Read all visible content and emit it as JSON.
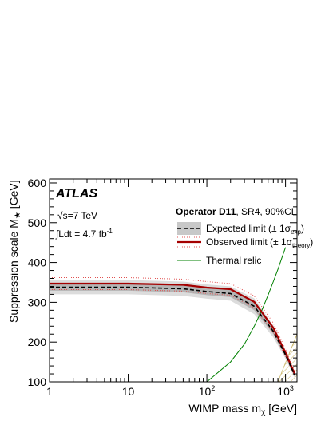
{
  "chart_data": {
    "type": "line",
    "xlabel": "WIMP mass m",
    "xlabel_sub": "χ",
    "xlabel_unit": " [GeV]",
    "ylabel": "Suppression scale M",
    "ylabel_sub": "★",
    "ylabel_unit": " [GeV]",
    "xscale": "log",
    "xlim": [
      1,
      1400
    ],
    "ylim": [
      100,
      610
    ],
    "x_ticks": [
      {
        "v": 1,
        "text": "1",
        "sup": ""
      },
      {
        "v": 10,
        "text": "10",
        "sup": ""
      },
      {
        "v": 100,
        "text": "10",
        "sup": "2"
      },
      {
        "v": 1000,
        "text": "10",
        "sup": "3"
      }
    ],
    "y_ticks": [
      100,
      200,
      300,
      400,
      500,
      600
    ],
    "legend_placement": "top-right",
    "texts": {
      "experiment": "ATLAS",
      "energy": "√s=7 TeV",
      "lumi_main": "∫Ldt = 4.7 fb",
      "lumi_sup": "-1",
      "operator_bold": "Operator D11",
      "operator_rest": ", SR4, 90%CL"
    },
    "legend": [
      {
        "key": "expected",
        "label": "Expected limit (± 1σ",
        "sub": "exp",
        "close": ")"
      },
      {
        "key": "observed",
        "label": "Observed limit (± 1σ",
        "sub": "theory",
        "close": ")"
      },
      {
        "key": "relic",
        "label": "Thermal relic",
        "sub": "",
        "close": ""
      }
    ],
    "colors": {
      "expected": "#000000",
      "band_2sigma": "#dcdcdc",
      "band_1sigma": "#b4b4b4",
      "observed": "#a50000",
      "theory_band": "#e05050",
      "relic": "#008000",
      "excluded_hatch": "#c8b464"
    },
    "x": [
      1,
      10,
      50,
      100,
      200,
      400,
      700,
      1000,
      1300
    ],
    "series": [
      {
        "name": "Expected limit",
        "key": "expected",
        "values": [
          338,
          338,
          334,
          327,
          322,
          290,
          227,
          168,
          118
        ]
      },
      {
        "key": "exp_minus1",
        "values": [
          329,
          329,
          325,
          318,
          313,
          280,
          220,
          163,
          114
        ]
      },
      {
        "key": "exp_plus1",
        "values": [
          347,
          347,
          343,
          336,
          331,
          300,
          235,
          174,
          122
        ]
      },
      {
        "key": "exp_minus2",
        "values": [
          320,
          320,
          316,
          309,
          304,
          270,
          212,
          158,
          110
        ]
      },
      {
        "key": "exp_plus2",
        "values": [
          356,
          356,
          352,
          345,
          340,
          310,
          242,
          180,
          126
        ]
      },
      {
        "name": "Observed limit",
        "key": "observed",
        "values": [
          347,
          347,
          344,
          337,
          333,
          301,
          236,
          173,
          121
        ]
      },
      {
        "key": "obs_minus",
        "values": [
          332,
          332,
          328,
          322,
          318,
          286,
          224,
          164,
          115
        ]
      },
      {
        "key": "obs_plus",
        "values": [
          362,
          362,
          358,
          352,
          347,
          316,
          248,
          182,
          127
        ]
      },
      {
        "name": "Thermal relic",
        "key": "relic",
        "x": [
          100,
          200,
          300,
          400,
          500,
          600,
          700,
          800,
          900,
          1000
        ],
        "values": [
          100,
          150,
          195,
          240,
          280,
          318,
          352,
          383,
          412,
          438
        ]
      }
    ]
  }
}
